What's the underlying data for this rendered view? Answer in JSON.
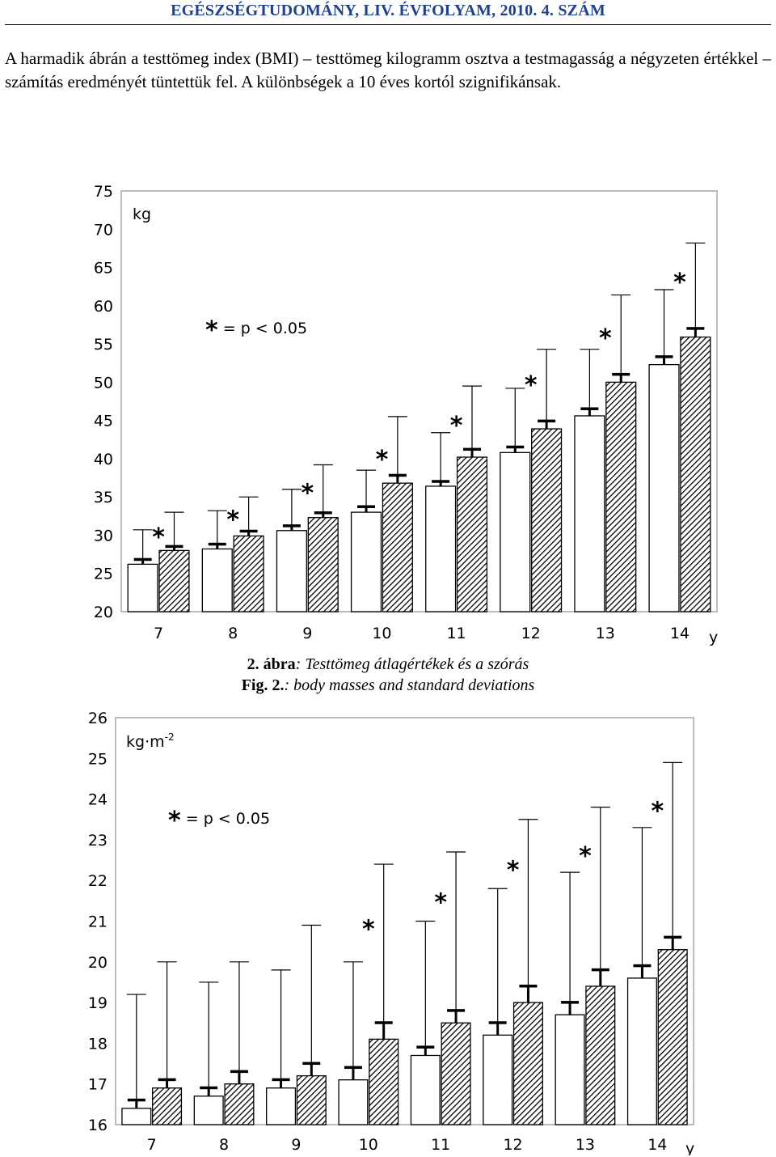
{
  "header": {
    "journal_title": "EGÉSZSÉGTUDOMÁNY, LIV. ÉVFOLYAM, 2010. 4. SZÁM"
  },
  "body_text": "A harmadik ábrán a testtömeg index (BMI) – testtömeg kilogramm osztva a testmagasság a négyzeten értékkel – számítás eredményét tüntettük fel. A különbségek a 10 éves kortól szignifikánsak.",
  "figure2": {
    "caption_hu_label": "2. ábra",
    "caption_hu_text": ": Testtömeg átlagértékek és a szórás",
    "caption_en_label": "Fig. 2.",
    "caption_en_text": ": body masses and standard deviations"
  },
  "chart_data": [
    {
      "type": "bar",
      "title": "",
      "unit_label": "kg",
      "xlabel": "y",
      "ylabel": "",
      "categories": [
        "7",
        "8",
        "9",
        "10",
        "11",
        "12",
        "13",
        "14"
      ],
      "ylim": [
        20,
        75
      ],
      "yticks": [
        20,
        25,
        30,
        35,
        40,
        45,
        50,
        55,
        60,
        65,
        70,
        75
      ],
      "series": [
        {
          "style": "open",
          "colors": "#ffffff",
          "values": [
            26.2,
            28.2,
            30.6,
            33.0,
            36.4,
            40.8,
            45.6,
            52.3
          ],
          "sd_upper": [
            30.7,
            33.2,
            36.0,
            38.5,
            43.4,
            49.2,
            54.3,
            62.1
          ],
          "sem_upper": [
            26.8,
            28.8,
            31.2,
            33.7,
            37.0,
            41.5,
            46.5,
            53.3
          ]
        },
        {
          "style": "hatched",
          "colors": "#000000",
          "values": [
            28.0,
            29.9,
            32.3,
            36.8,
            40.2,
            43.9,
            50.0,
            55.9
          ],
          "sd_upper": [
            33.0,
            35.0,
            39.2,
            45.5,
            49.5,
            54.3,
            61.4,
            68.2
          ],
          "sem_upper": [
            28.5,
            30.5,
            32.9,
            37.8,
            41.2,
            44.9,
            51.0,
            57.0
          ]
        }
      ],
      "significance_marker": "*",
      "significant": [
        true,
        true,
        true,
        true,
        true,
        true,
        true,
        true
      ],
      "legend_text": "* = p < 0.05",
      "legend_placement": "top-left",
      "grid": false
    },
    {
      "type": "bar",
      "title": "",
      "unit_label": "kg·m-2",
      "xlabel": "y",
      "ylabel": "",
      "categories": [
        "7",
        "8",
        "9",
        "10",
        "11",
        "12",
        "13",
        "14"
      ],
      "ylim": [
        16,
        26
      ],
      "yticks": [
        16,
        17,
        18,
        19,
        20,
        21,
        22,
        23,
        24,
        25,
        26
      ],
      "series": [
        {
          "style": "open",
          "colors": "#ffffff",
          "values": [
            16.4,
            16.7,
            16.9,
            17.1,
            17.7,
            18.2,
            18.7,
            19.6
          ],
          "sd_upper": [
            19.2,
            19.5,
            19.8,
            20.0,
            21.0,
            21.8,
            22.2,
            23.3
          ],
          "sem_upper": [
            16.6,
            16.9,
            17.1,
            17.4,
            17.9,
            18.5,
            19.0,
            19.9
          ]
        },
        {
          "style": "hatched",
          "colors": "#000000",
          "values": [
            16.9,
            17.0,
            17.2,
            18.1,
            18.5,
            19.0,
            19.4,
            20.3
          ],
          "sd_upper": [
            20.0,
            20.0,
            20.9,
            22.4,
            22.7,
            23.5,
            23.8,
            24.9
          ],
          "sem_upper": [
            17.1,
            17.3,
            17.5,
            18.5,
            18.8,
            19.4,
            19.8,
            20.6
          ]
        }
      ],
      "significance_marker": "*",
      "significant": [
        false,
        false,
        false,
        true,
        true,
        true,
        true,
        true
      ],
      "legend_text": "* = p < 0.05",
      "legend_placement": "top-left",
      "grid": false
    }
  ]
}
